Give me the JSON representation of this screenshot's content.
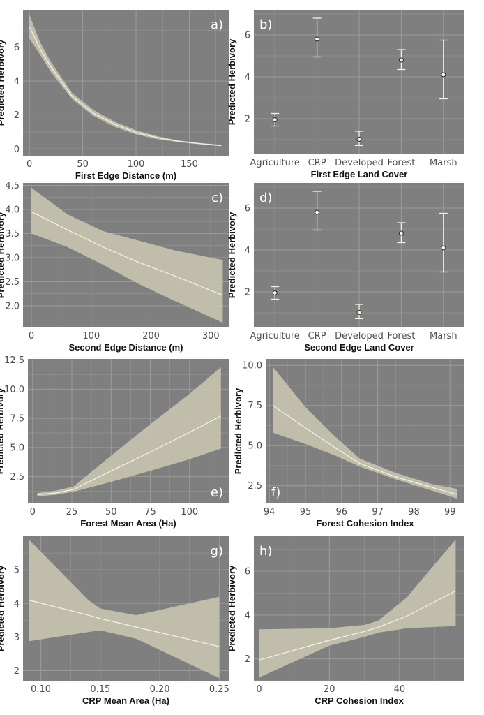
{
  "figure": {
    "background": "#ffffff",
    "panel_bg": "#7f7f7f",
    "grid": "#9b9b9b",
    "band": "#c7c2af",
    "line": "#f5f3e6"
  },
  "chart_data": [
    {
      "id": "a",
      "type": "line",
      "panel_label": "a)",
      "label_pos": "top-right",
      "xlabel": "First Edge Distance (m)",
      "ylabel": "Predicted Herbivory",
      "xlim": [
        -6,
        187
      ],
      "ylim": [
        -0.4,
        8.2
      ],
      "xticks": [
        0,
        50,
        100,
        150
      ],
      "yticks": [
        0,
        2,
        4,
        6
      ],
      "x": [
        0,
        10,
        20,
        40,
        60,
        80,
        100,
        120,
        140,
        160,
        180
      ],
      "y": [
        7.2,
        5.9,
        4.85,
        3.1,
        2.1,
        1.45,
        0.97,
        0.66,
        0.45,
        0.31,
        0.2
      ],
      "lower": [
        6.5,
        5.55,
        4.55,
        2.95,
        1.95,
        1.3,
        0.86,
        0.58,
        0.4,
        0.27,
        0.16
      ],
      "upper": [
        7.9,
        6.3,
        5.15,
        3.3,
        2.3,
        1.6,
        1.1,
        0.75,
        0.5,
        0.35,
        0.25
      ]
    },
    {
      "id": "b",
      "type": "errorbar",
      "panel_label": "b)",
      "label_pos": "top-left",
      "xlabel": "First Edge Land Cover",
      "ylabel": "Predicted Herbivory",
      "ylim": [
        0.3,
        7.2
      ],
      "yticks": [
        2,
        4,
        6
      ],
      "categories": [
        "Agriculture",
        "CRP",
        "Developed",
        "Forest",
        "Marsh"
      ],
      "values": [
        1.95,
        5.8,
        1.02,
        4.8,
        4.1
      ],
      "lower": [
        1.65,
        4.95,
        0.72,
        4.35,
        2.95
      ],
      "upper": [
        2.25,
        6.8,
        1.4,
        5.3,
        5.75
      ]
    },
    {
      "id": "c",
      "type": "line",
      "panel_label": "c)",
      "label_pos": "top-right",
      "xlabel": "Second Edge Distance (m)",
      "ylabel": "Predicted Herbivory",
      "xlim": [
        -14,
        330
      ],
      "ylim": [
        1.55,
        4.55
      ],
      "xticks": [
        0,
        100,
        200,
        300
      ],
      "yticks": [
        2.0,
        2.5,
        3.0,
        3.5,
        4.0,
        4.5
      ],
      "x": [
        0,
        60,
        120,
        180,
        240,
        320
      ],
      "y": [
        3.95,
        3.58,
        3.22,
        2.9,
        2.62,
        2.22
      ],
      "lower": [
        3.5,
        3.22,
        2.85,
        2.45,
        2.1,
        1.65
      ],
      "upper": [
        4.45,
        3.9,
        3.55,
        3.35,
        3.15,
        2.95
      ]
    },
    {
      "id": "d",
      "type": "errorbar",
      "panel_label": "d)",
      "label_pos": "top-left",
      "xlabel": "Second Edge Land Cover",
      "ylabel": "Predicted Herbivory",
      "ylim": [
        0.3,
        7.2
      ],
      "yticks": [
        2,
        4,
        6
      ],
      "categories": [
        "Agriculture",
        "CRP",
        "Developed",
        "Forest",
        "Marsh"
      ],
      "values": [
        1.95,
        5.8,
        1.02,
        4.8,
        4.1
      ],
      "lower": [
        1.65,
        4.95,
        0.72,
        4.35,
        2.95
      ],
      "upper": [
        2.25,
        6.8,
        1.4,
        5.3,
        5.75
      ]
    },
    {
      "id": "e",
      "type": "line",
      "panel_label": "e)",
      "label_pos": "bottom-right",
      "xlabel": "Forest Mean Area (Ha)",
      "ylabel": "Predicted Herbivory",
      "xlim": [
        -3,
        125
      ],
      "ylim": [
        0.2,
        12.6
      ],
      "xticks": [
        0,
        25,
        50,
        75,
        100
      ],
      "yticks": [
        2.5,
        5.0,
        7.5,
        10.0,
        12.5
      ],
      "x": [
        3,
        15,
        26,
        50,
        75,
        100,
        120
      ],
      "y": [
        0.95,
        1.1,
        1.4,
        3.0,
        4.6,
        6.3,
        7.7
      ],
      "lower": [
        0.8,
        0.95,
        1.2,
        2.05,
        3.0,
        4.0,
        4.9
      ],
      "upper": [
        1.1,
        1.3,
        1.65,
        4.3,
        7.0,
        9.6,
        11.9
      ]
    },
    {
      "id": "f",
      "type": "line",
      "panel_label": "f)",
      "label_pos": "bottom-left",
      "xlabel": "Forest Cohesion Index",
      "ylabel": "Predicted Herbivory",
      "xlim": [
        93.9,
        99.4
      ],
      "ylim": [
        1.4,
        10.4
      ],
      "xticks": [
        94,
        95,
        96,
        97,
        98,
        99
      ],
      "yticks": [
        2.5,
        5.0,
        7.5,
        10.0
      ],
      "x": [
        94.1,
        95.0,
        95.8,
        96.5,
        97.5,
        98.5,
        99.2
      ],
      "y": [
        7.5,
        6.1,
        4.9,
        3.9,
        3.05,
        2.4,
        1.95
      ],
      "lower": [
        5.8,
        5.1,
        4.4,
        3.7,
        2.9,
        2.2,
        1.7
      ],
      "upper": [
        9.9,
        7.4,
        5.6,
        4.2,
        3.3,
        2.6,
        2.3
      ]
    },
    {
      "id": "g",
      "type": "line",
      "panel_label": "g)",
      "label_pos": "top-right",
      "xlabel": "CRP Mean Area (Ha)",
      "ylabel": "Predicted Herbivory",
      "xlim": [
        0.085,
        0.258
      ],
      "ylim": [
        1.7,
        6.0
      ],
      "xticks": [
        0.1,
        0.15,
        0.2,
        0.25
      ],
      "yticks": [
        2,
        3,
        4,
        5
      ],
      "x": [
        0.09,
        0.14,
        0.15,
        0.18,
        0.25
      ],
      "y": [
        4.1,
        3.65,
        3.55,
        3.3,
        2.72
      ],
      "lower": [
        2.88,
        3.15,
        3.2,
        2.95,
        1.78
      ],
      "upper": [
        5.9,
        4.1,
        3.85,
        3.65,
        4.2
      ]
    },
    {
      "id": "h",
      "type": "line",
      "panel_label": "h)",
      "label_pos": "top-left",
      "xlabel": "CRP Cohesion Index",
      "ylabel": "Predicted Herbivory",
      "xlim": [
        -1.5,
        58.5
      ],
      "ylim": [
        1.0,
        7.6
      ],
      "xticks": [
        0,
        20,
        40
      ],
      "yticks": [
        2,
        4,
        6
      ],
      "x": [
        0,
        20,
        30,
        34,
        42,
        56
      ],
      "y": [
        1.95,
        2.85,
        3.25,
        3.45,
        3.95,
        5.1
      ],
      "lower": [
        1.15,
        2.6,
        3.0,
        3.2,
        3.4,
        3.5
      ],
      "upper": [
        3.35,
        3.4,
        3.55,
        3.75,
        4.8,
        7.45
      ]
    }
  ]
}
